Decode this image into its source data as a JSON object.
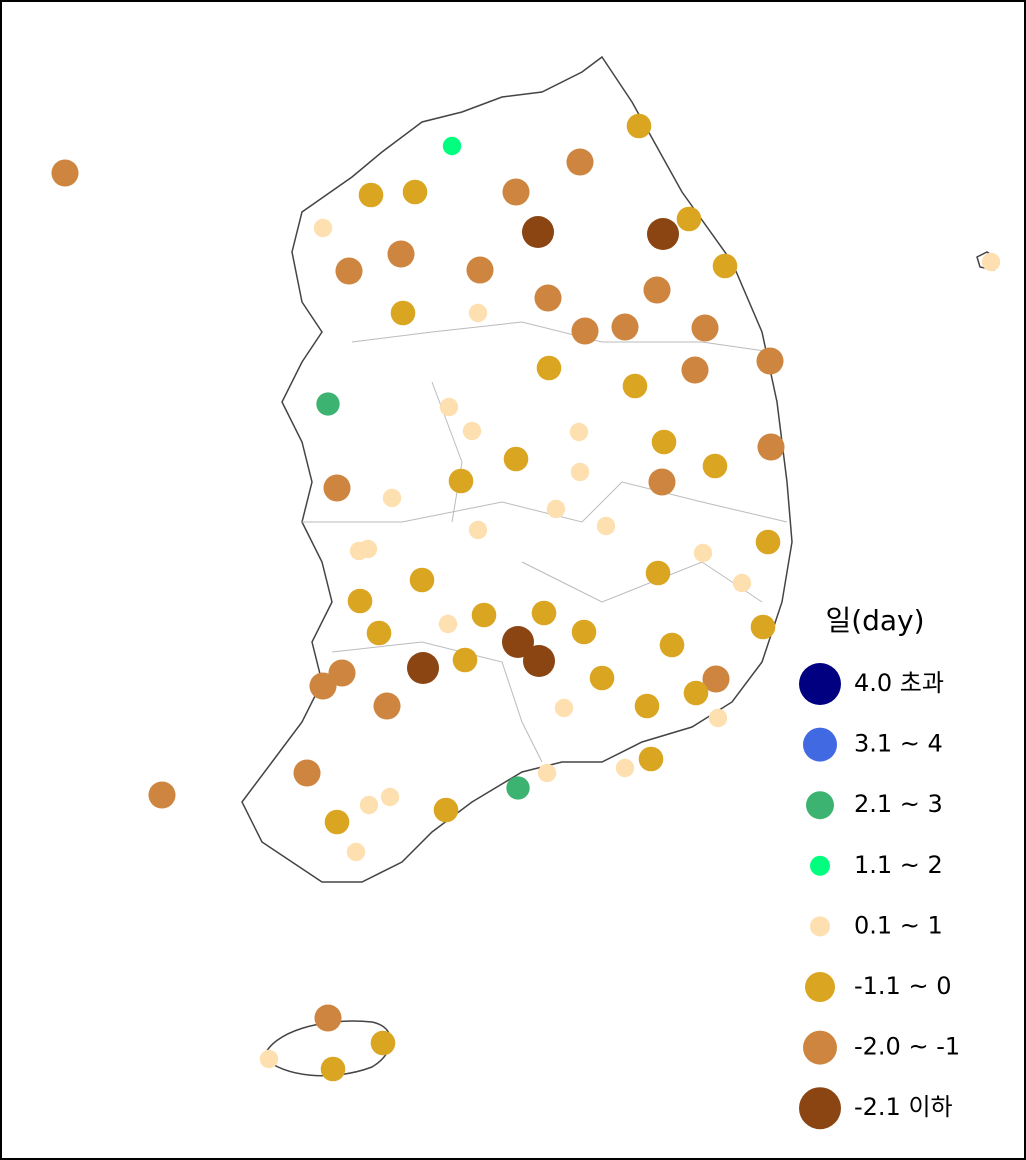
{
  "legend": {
    "title": "일(day)",
    "items": [
      {
        "label": "4.0 초과",
        "color": "#000080"
      },
      {
        "label": "3.1 ~ 4",
        "color": "#4169e1"
      },
      {
        "label": "2.1 ~ 3",
        "color": "#3cb371"
      },
      {
        "label": "1.1 ~ 2",
        "color": "#00ff7f"
      },
      {
        "label": "0.1 ~ 1",
        "color": "#fddfb0"
      },
      {
        "label": "-1.1 ~ 0",
        "color": "#daa520"
      },
      {
        "label": "-2.0 ~ -1",
        "color": "#cd853f"
      },
      {
        "label": "-2.1 이하",
        "color": "#8b4513"
      }
    ]
  }
}
